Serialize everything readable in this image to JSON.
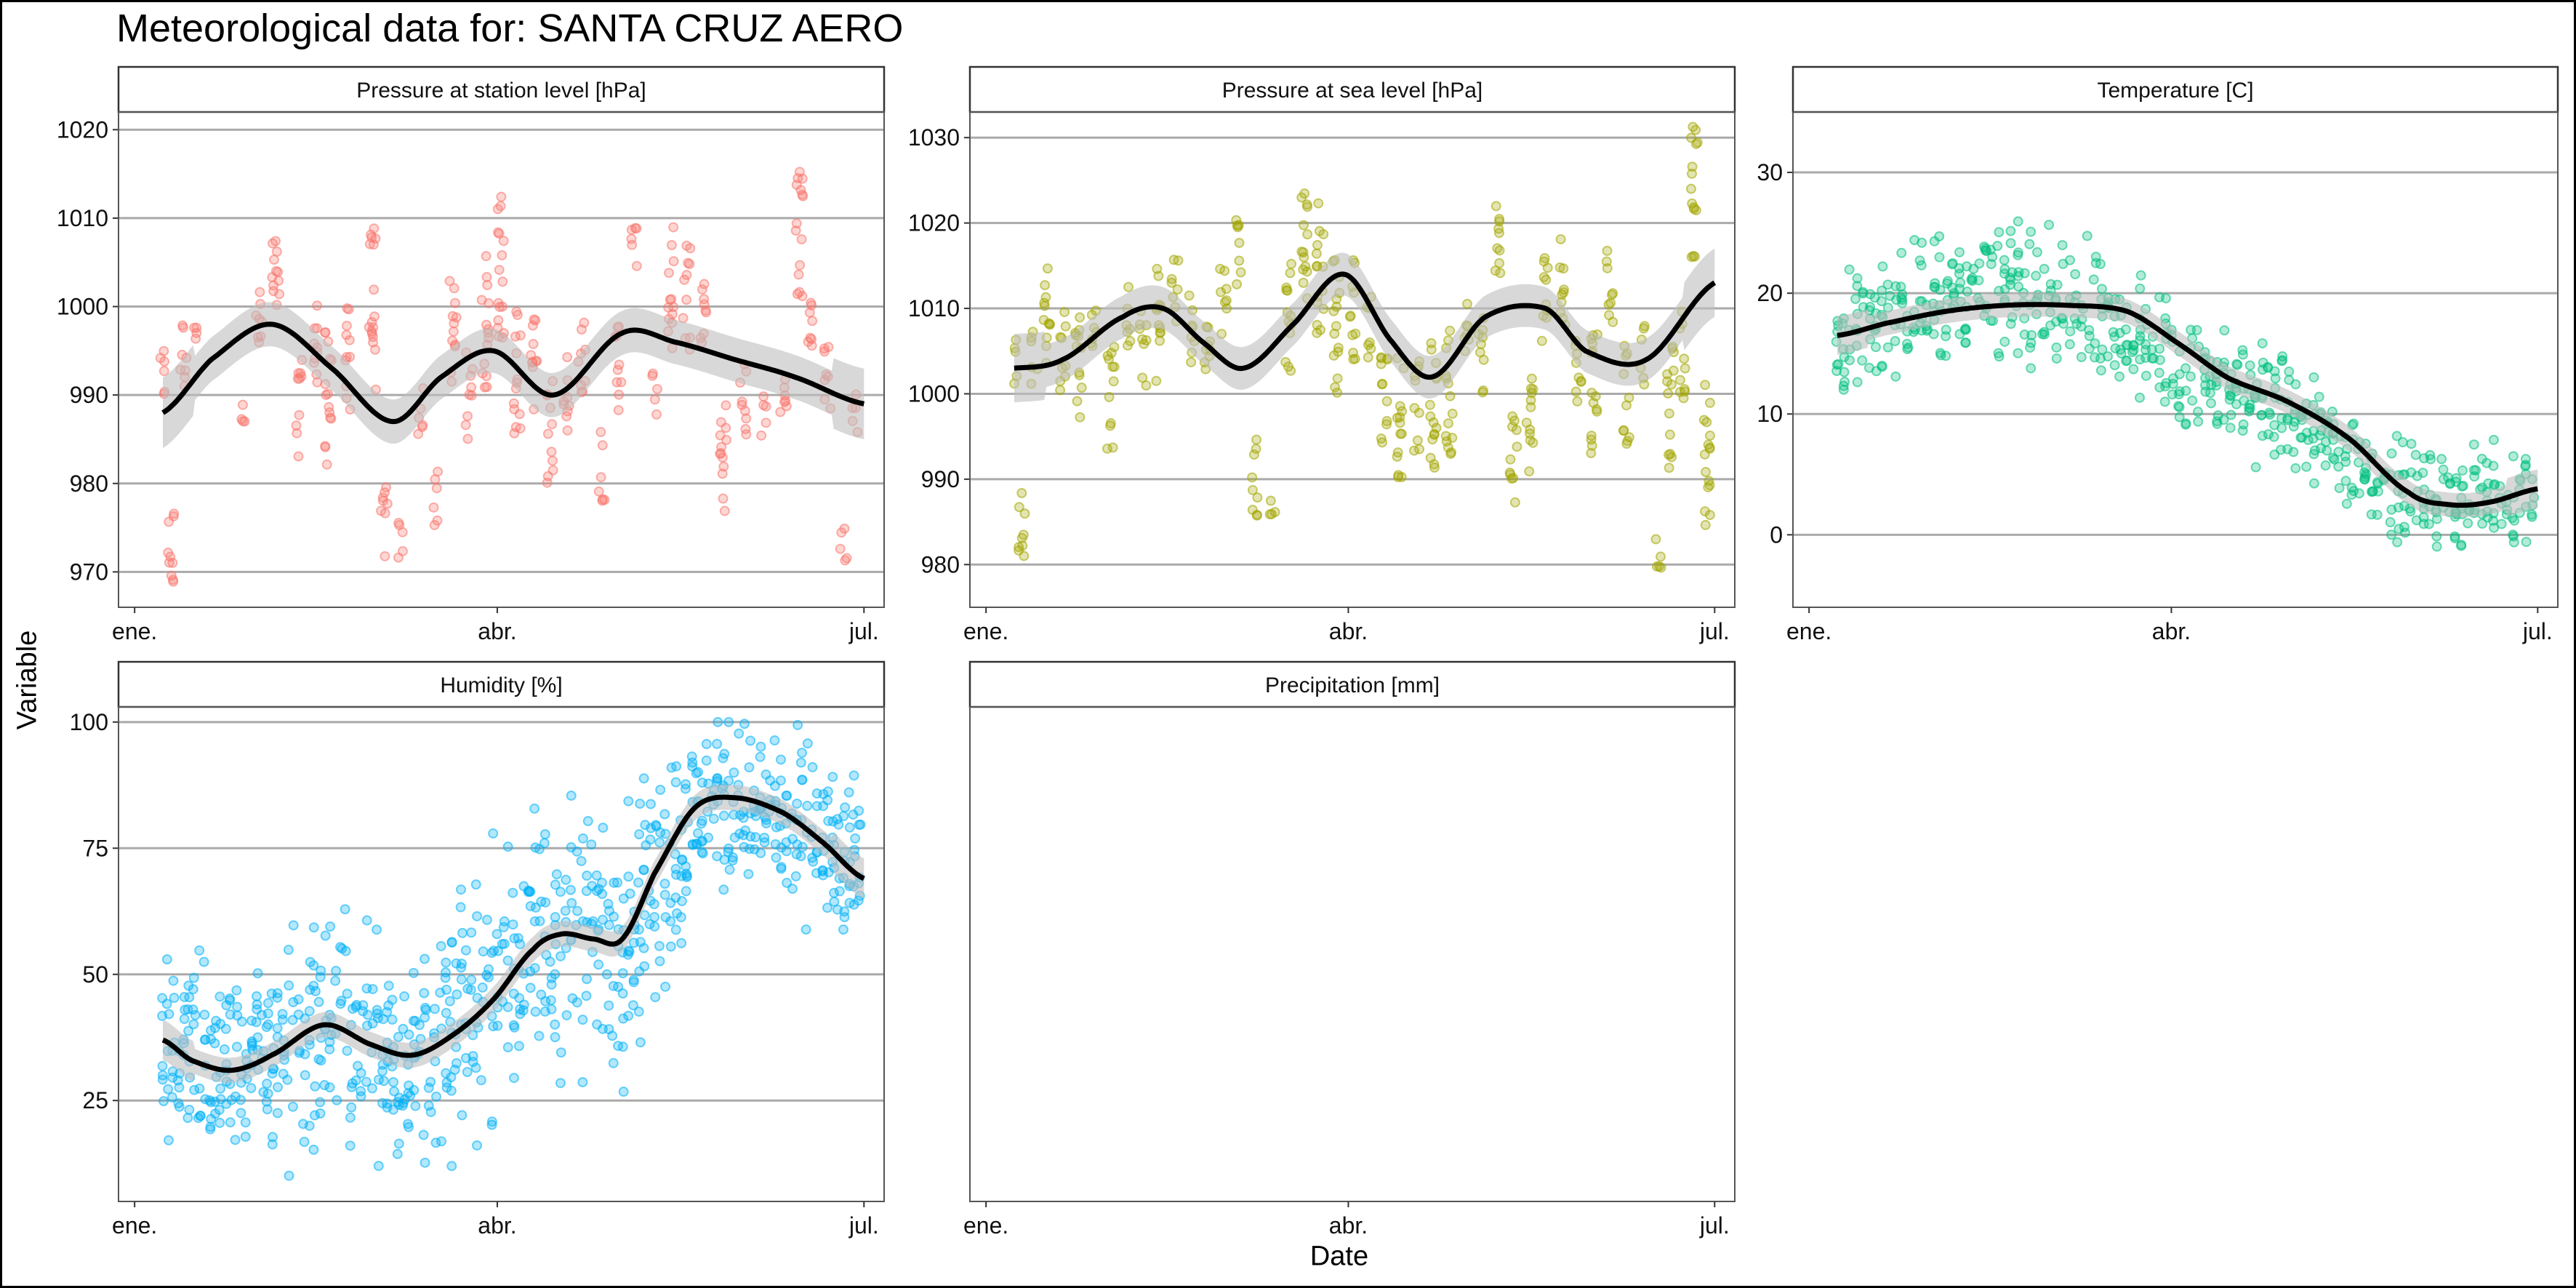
{
  "title": "Meteorological data for: SANTA CRUZ AERO",
  "xlabel": "Date",
  "ylabel": "Variable",
  "colors": {
    "station_pressure": "#F8766D",
    "sea_pressure": "#A3A500",
    "temperature": "#00BF7D",
    "humidity": "#00B0F6",
    "smooth_line": "#000000",
    "ribbon": "#BEBEBE",
    "grid": "#AAAAAA"
  },
  "chart_data": [
    {
      "type": "scatter",
      "strip": "Pressure at station level [hPa]",
      "x_unit": "day_of_year",
      "x_ticks": [
        {
          "v": 1,
          "label": "ene."
        },
        {
          "v": 91,
          "label": "abr."
        },
        {
          "v": 182,
          "label": "jul."
        }
      ],
      "xlim": [
        -3,
        187
      ],
      "y_ticks": [
        970,
        980,
        990,
        1000,
        1010,
        1020
      ],
      "ylim": [
        966,
        1022
      ],
      "smooth": {
        "x": [
          8,
          20,
          35,
          50,
          65,
          77,
          90,
          105,
          122,
          135,
          150,
          165,
          182
        ],
        "y": [
          988,
          994,
          998,
          993,
          987,
          992,
          995,
          990,
          997,
          996,
          994,
          992,
          989
        ]
      },
      "ribbon_halfwidth": 2.5,
      "clusters": [
        {
          "x": 8,
          "y": [
            988,
            995
          ]
        },
        {
          "x": 10,
          "y": [
            967,
            978
          ]
        },
        {
          "x": 13,
          "y": [
            990,
            999
          ]
        },
        {
          "x": 16,
          "y": [
            996,
            1000
          ]
        },
        {
          "x": 28,
          "y": [
            987,
            989
          ]
        },
        {
          "x": 32,
          "y": [
            994,
            1003
          ]
        },
        {
          "x": 36,
          "y": [
            995,
            1008
          ]
        },
        {
          "x": 42,
          "y": [
            983,
            994
          ]
        },
        {
          "x": 46,
          "y": [
            990,
            1001
          ]
        },
        {
          "x": 49,
          "y": [
            982,
            999
          ]
        },
        {
          "x": 54,
          "y": [
            988,
            1000
          ]
        },
        {
          "x": 60,
          "y": [
            990,
            1009
          ]
        },
        {
          "x": 63,
          "y": [
            971,
            980
          ]
        },
        {
          "x": 67,
          "y": [
            971,
            976
          ]
        },
        {
          "x": 72,
          "y": [
            985,
            992
          ]
        },
        {
          "x": 76,
          "y": [
            975,
            982
          ]
        },
        {
          "x": 80,
          "y": [
            990,
            1003
          ]
        },
        {
          "x": 84,
          "y": [
            985,
            995
          ]
        },
        {
          "x": 88,
          "y": [
            990,
            1006
          ]
        },
        {
          "x": 92,
          "y": [
            995,
            1014
          ]
        },
        {
          "x": 96,
          "y": [
            985,
            1000
          ]
        },
        {
          "x": 100,
          "y": [
            988,
            1000
          ]
        },
        {
          "x": 104,
          "y": [
            980,
            992
          ]
        },
        {
          "x": 108,
          "y": [
            985,
            995
          ]
        },
        {
          "x": 112,
          "y": [
            990,
            1000
          ]
        },
        {
          "x": 117,
          "y": [
            978,
            986
          ]
        },
        {
          "x": 121,
          "y": [
            988,
            999
          ]
        },
        {
          "x": 125,
          "y": [
            1003,
            1010
          ]
        },
        {
          "x": 130,
          "y": [
            987,
            993
          ]
        },
        {
          "x": 134,
          "y": [
            995,
            1009
          ]
        },
        {
          "x": 138,
          "y": [
            995,
            1007
          ]
        },
        {
          "x": 142,
          "y": [
            993,
            1003
          ]
        },
        {
          "x": 147,
          "y": [
            976,
            990
          ]
        },
        {
          "x": 152,
          "y": [
            985,
            995
          ]
        },
        {
          "x": 157,
          "y": [
            985,
            990
          ]
        },
        {
          "x": 162,
          "y": [
            987,
            995
          ]
        },
        {
          "x": 166,
          "y": [
            1001,
            1017
          ]
        },
        {
          "x": 169,
          "y": [
            994,
            1003
          ]
        },
        {
          "x": 173,
          "y": [
            987,
            996
          ]
        },
        {
          "x": 177,
          "y": [
            971,
            976
          ]
        },
        {
          "x": 180,
          "y": [
            985,
            991
          ]
        }
      ]
    },
    {
      "type": "scatter",
      "strip": "Pressure at sea level [hPa]",
      "x_unit": "day_of_year",
      "x_ticks": [
        {
          "v": 1,
          "label": "ene."
        },
        {
          "v": 91,
          "label": "abr."
        },
        {
          "v": 182,
          "label": "jul."
        }
      ],
      "xlim": [
        -3,
        187
      ],
      "y_ticks": [
        980,
        990,
        1000,
        1010,
        1020,
        1030
      ],
      "ylim": [
        975,
        1033
      ],
      "smooth": {
        "x": [
          8,
          20,
          35,
          45,
          55,
          65,
          77,
          90,
          102,
          112,
          125,
          140,
          150,
          165,
          182
        ],
        "y": [
          1003,
          1004,
          1009,
          1010,
          1006,
          1003,
          1008,
          1014,
          1006,
          1002,
          1009,
          1010,
          1005,
          1004,
          1013
        ]
      },
      "ribbon_halfwidth": 2.5,
      "clusters": [
        {
          "x": 8,
          "y": [
            1001,
            1007
          ]
        },
        {
          "x": 10,
          "y": [
            981,
            991
          ]
        },
        {
          "x": 13,
          "y": [
            1001,
            1008
          ]
        },
        {
          "x": 16,
          "y": [
            1003,
            1016
          ]
        },
        {
          "x": 20,
          "y": [
            1000,
            1010
          ]
        },
        {
          "x": 24,
          "y": [
            997,
            1010
          ]
        },
        {
          "x": 28,
          "y": [
            1005,
            1013
          ]
        },
        {
          "x": 32,
          "y": [
            993,
            1006
          ]
        },
        {
          "x": 36,
          "y": [
            1005,
            1013
          ]
        },
        {
          "x": 40,
          "y": [
            1000,
            1010
          ]
        },
        {
          "x": 44,
          "y": [
            1001,
            1015
          ]
        },
        {
          "x": 48,
          "y": [
            1008,
            1017
          ]
        },
        {
          "x": 52,
          "y": [
            1003,
            1012
          ]
        },
        {
          "x": 56,
          "y": [
            1000,
            1010
          ]
        },
        {
          "x": 60,
          "y": [
            1007,
            1016
          ]
        },
        {
          "x": 64,
          "y": [
            1012,
            1021
          ]
        },
        {
          "x": 68,
          "y": [
            985,
            995
          ]
        },
        {
          "x": 72,
          "y": [
            985,
            989
          ]
        },
        {
          "x": 76,
          "y": [
            1002,
            1016
          ]
        },
        {
          "x": 80,
          "y": [
            1010,
            1025
          ]
        },
        {
          "x": 84,
          "y": [
            1006,
            1023
          ]
        },
        {
          "x": 88,
          "y": [
            1000,
            1017
          ]
        },
        {
          "x": 92,
          "y": [
            1004,
            1016
          ]
        },
        {
          "x": 96,
          "y": [
            1004,
            1012
          ]
        },
        {
          "x": 100,
          "y": [
            994,
            1007
          ]
        },
        {
          "x": 104,
          "y": [
            990,
            1005
          ]
        },
        {
          "x": 108,
          "y": [
            993,
            1004
          ]
        },
        {
          "x": 112,
          "y": [
            990,
            1006
          ]
        },
        {
          "x": 116,
          "y": [
            992,
            1008
          ]
        },
        {
          "x": 120,
          "y": [
            1005,
            1013
          ]
        },
        {
          "x": 124,
          "y": [
            1000,
            1010
          ]
        },
        {
          "x": 128,
          "y": [
            1012,
            1023
          ]
        },
        {
          "x": 132,
          "y": [
            987,
            999
          ]
        },
        {
          "x": 136,
          "y": [
            990,
            1003
          ]
        },
        {
          "x": 140,
          "y": [
            1006,
            1017
          ]
        },
        {
          "x": 144,
          "y": [
            1008,
            1019
          ]
        },
        {
          "x": 148,
          "y": [
            998,
            1008
          ]
        },
        {
          "x": 152,
          "y": [
            993,
            1009
          ]
        },
        {
          "x": 156,
          "y": [
            1008,
            1018
          ]
        },
        {
          "x": 160,
          "y": [
            994,
            1006
          ]
        },
        {
          "x": 164,
          "y": [
            1001,
            1008
          ]
        },
        {
          "x": 168,
          "y": [
            977,
            983
          ]
        },
        {
          "x": 171,
          "y": [
            991,
            1006
          ]
        },
        {
          "x": 174,
          "y": [
            999,
            1010
          ]
        },
        {
          "x": 177,
          "y": [
            1016,
            1032
          ]
        },
        {
          "x": 180,
          "y": [
            984,
            1002
          ]
        }
      ]
    },
    {
      "type": "scatter",
      "strip": "Temperature [C]",
      "x_unit": "day_of_year",
      "x_ticks": [
        {
          "v": 1,
          "label": "ene."
        },
        {
          "v": 91,
          "label": "abr."
        },
        {
          "v": 182,
          "label": "jul."
        }
      ],
      "xlim": [
        -3,
        187
      ],
      "y_ticks": [
        0,
        10,
        20,
        30
      ],
      "ylim": [
        -6,
        35
      ],
      "smooth": {
        "x": [
          8,
          20,
          35,
          50,
          65,
          80,
          92,
          105,
          120,
          135,
          150,
          160,
          170,
          182
        ],
        "y": [
          16.5,
          17.5,
          18.5,
          19,
          19,
          18.5,
          16,
          13,
          11,
          8,
          3.5,
          2.5,
          2.7,
          3.8
        ]
      },
      "ribbon_halfwidth": 1.0,
      "band": {
        "days_from": 8,
        "days_to": 182,
        "step": 1.6,
        "center": [
          16,
          18,
          19,
          20,
          19,
          18,
          16,
          14,
          12,
          10,
          7,
          4,
          3,
          3,
          3
        ],
        "spread": [
          5,
          6,
          6,
          7,
          6,
          6,
          6,
          5,
          5,
          5,
          5,
          4,
          4,
          4,
          4
        ]
      }
    },
    {
      "type": "scatter",
      "strip": "Humidity [%]",
      "x_unit": "day_of_year",
      "x_ticks": [
        {
          "v": 1,
          "label": "ene."
        },
        {
          "v": 91,
          "label": "abr."
        },
        {
          "v": 182,
          "label": "jul."
        }
      ],
      "xlim": [
        -3,
        187
      ],
      "y_ticks": [
        25,
        50,
        75,
        100
      ],
      "ylim": [
        5,
        103
      ],
      "smooth": {
        "x": [
          8,
          15,
          25,
          35,
          48,
          60,
          70,
          80,
          90,
          100,
          107,
          115,
          122,
          130,
          140,
          150,
          162,
          172,
          182
        ],
        "y": [
          37,
          33,
          31,
          34,
          40,
          36,
          34,
          38,
          45,
          55,
          58,
          57,
          57,
          70,
          83,
          85,
          82,
          76,
          69
        ]
      },
      "ribbon_halfwidth": 2.5,
      "band": {
        "days_from": 8,
        "days_to": 182,
        "step": 1.3,
        "center": [
          37,
          33,
          32,
          35,
          40,
          36,
          33,
          38,
          48,
          56,
          58,
          57,
          68,
          83,
          85,
          80,
          74,
          70
        ],
        "spread": [
          22,
          22,
          22,
          24,
          25,
          24,
          22,
          26,
          28,
          28,
          28,
          28,
          28,
          18,
          16,
          18,
          18,
          18
        ],
        "cap": 100
      }
    },
    {
      "type": "scatter",
      "strip": "Precipitation [mm]",
      "x_unit": "day_of_year",
      "x_ticks": [
        {
          "v": 1,
          "label": "ene."
        },
        {
          "v": 91,
          "label": "abr."
        },
        {
          "v": 182,
          "label": "jul."
        }
      ],
      "xlim": [
        -3,
        187
      ],
      "y_ticks": []
    }
  ]
}
